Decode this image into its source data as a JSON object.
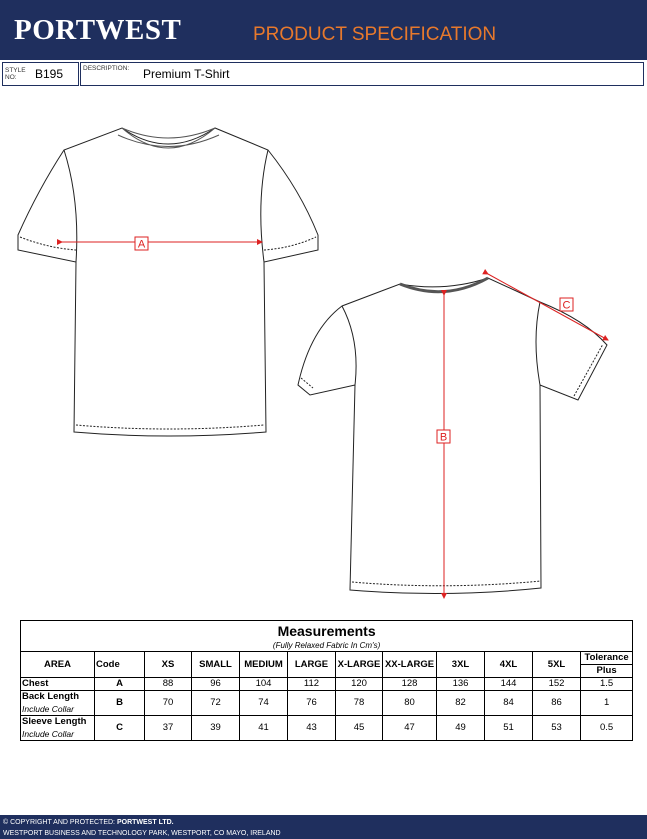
{
  "header": {
    "brand": "PORTWEST",
    "title": "PRODUCT SPECIFICATION"
  },
  "info": {
    "style_label": "STYLE NO:",
    "style": "B195",
    "description_label": "DESCRIPTION:",
    "description": "Premium T-Shirt"
  },
  "diagram": {
    "labels": [
      "A",
      "B",
      "C"
    ]
  },
  "table": {
    "title": "Measurements",
    "subtitle": "(Fully Relaxed Fabric In Cm's)",
    "header": [
      "AREA",
      "Code",
      "XS",
      "SMALL",
      "MEDIUM",
      "LARGE",
      "X-LARGE",
      "XX-LARGE",
      "3XL",
      "4XL",
      "5XL",
      "Tolerance"
    ],
    "header_sub": "Plus",
    "rows": [
      {
        "area": "Chest",
        "code": "A",
        "values": [
          88,
          96,
          104,
          112,
          120,
          128,
          136,
          144,
          152
        ],
        "tolerance": 1.5
      },
      {
        "area": "Back Length",
        "note": "Include Collar",
        "code": "B",
        "values": [
          70,
          72,
          74,
          76,
          78,
          80,
          82,
          84,
          86
        ],
        "tolerance": 1
      },
      {
        "area": "Sleeve Length",
        "note": "Include Collar",
        "code": "C",
        "values": [
          37,
          39,
          41,
          43,
          45,
          47,
          49,
          51,
          53
        ],
        "tolerance": 0.5
      }
    ]
  },
  "footer": {
    "copyright": "© COPYRIGHT AND PROTECTED:",
    "company": "PORTWEST LTD.",
    "address": "WESTPORT BUSINESS AND TECHNOLOGY PARK, WESTPORT, CO MAYO, IRELAND"
  }
}
